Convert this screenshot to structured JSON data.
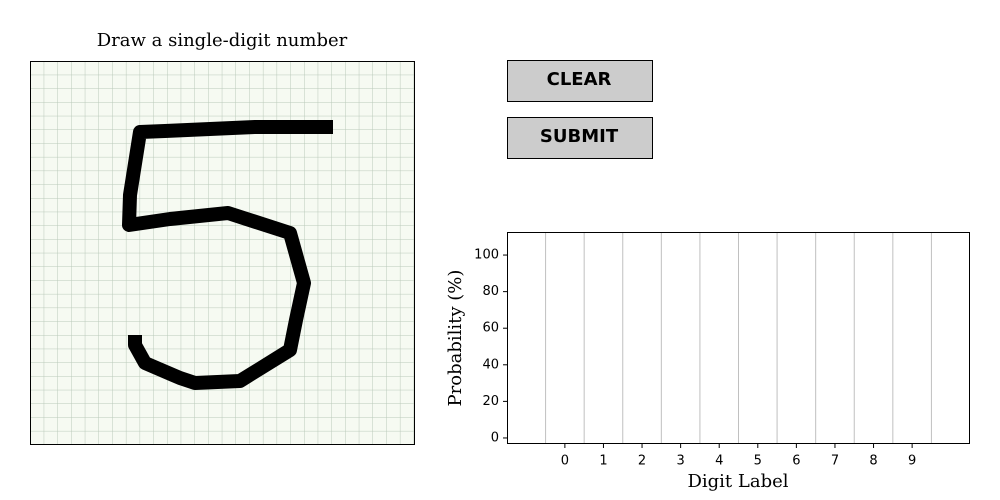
{
  "canvas": {
    "title": "Draw a single-digit number"
  },
  "buttons": {
    "clear": "CLEAR",
    "submit": "SUBMIT"
  },
  "chart_data": {
    "type": "bar",
    "categories": [
      "0",
      "1",
      "2",
      "3",
      "4",
      "5",
      "6",
      "7",
      "8",
      "9"
    ],
    "xlabel": "Digit Label",
    "ylabel": "Probability (%)",
    "xlim": [
      -1.5,
      10.5
    ],
    "ylim": [
      -3.3,
      112.6
    ],
    "yticks": [
      0,
      20,
      40,
      60,
      80,
      100
    ]
  }
}
